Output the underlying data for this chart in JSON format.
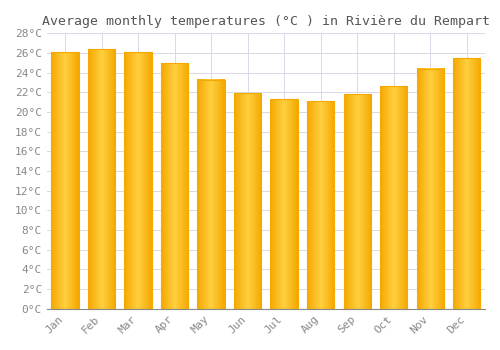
{
  "title": "Average monthly temperatures (°C ) in Rivière du Rempart",
  "months": [
    "Jan",
    "Feb",
    "Mar",
    "Apr",
    "May",
    "Jun",
    "Jul",
    "Aug",
    "Sep",
    "Oct",
    "Nov",
    "Dec"
  ],
  "values": [
    26.1,
    26.4,
    26.1,
    25.0,
    23.3,
    21.9,
    21.3,
    21.1,
    21.8,
    22.6,
    24.4,
    25.5
  ],
  "bar_color_center": "#FFD040",
  "bar_color_edge": "#F5A800",
  "background_color": "#ffffff",
  "grid_color": "#d8d8e8",
  "ytick_labels": [
    "0°C",
    "2°C",
    "4°C",
    "6°C",
    "8°C",
    "10°C",
    "12°C",
    "14°C",
    "16°C",
    "18°C",
    "20°C",
    "22°C",
    "24°C",
    "26°C",
    "28°C"
  ],
  "ytick_values": [
    0,
    2,
    4,
    6,
    8,
    10,
    12,
    14,
    16,
    18,
    20,
    22,
    24,
    26,
    28
  ],
  "ylim": [
    0,
    28
  ],
  "title_fontsize": 9.5,
  "tick_fontsize": 8,
  "font_family": "monospace",
  "bar_width": 0.75
}
